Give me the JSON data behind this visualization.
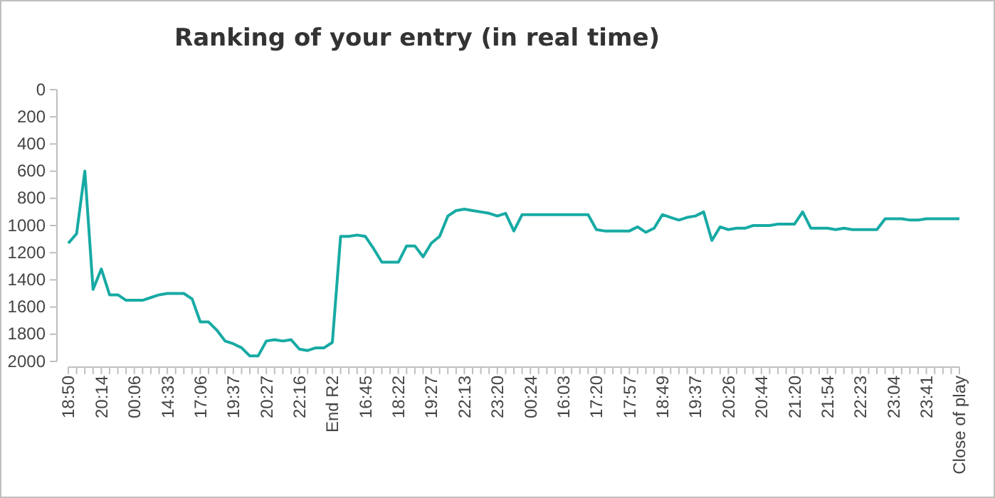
{
  "chart_data": {
    "type": "line",
    "title": "Ranking of your entry (in real time)",
    "categories": [
      "18:50",
      null,
      null,
      null,
      "20:14",
      null,
      null,
      null,
      "00:06",
      null,
      null,
      null,
      "14:33",
      null,
      null,
      null,
      "17:06",
      null,
      null,
      null,
      "19:37",
      null,
      null,
      null,
      "20:27",
      null,
      null,
      null,
      "22:16",
      null,
      null,
      null,
      "End R2",
      null,
      null,
      null,
      "16:45",
      null,
      null,
      null,
      "18:22",
      null,
      null,
      null,
      "19:27",
      null,
      null,
      null,
      "22:13",
      null,
      null,
      null,
      "23:20",
      null,
      null,
      null,
      "00:24",
      null,
      null,
      null,
      "16:03",
      null,
      null,
      null,
      "17:20",
      null,
      null,
      null,
      "17:57",
      null,
      null,
      null,
      "18:49",
      null,
      null,
      null,
      "19:37",
      null,
      null,
      null,
      "20:26",
      null,
      null,
      null,
      "20:44",
      null,
      null,
      null,
      "21:20",
      null,
      null,
      null,
      "21:54",
      null,
      null,
      null,
      "22:23",
      null,
      null,
      null,
      "23:04",
      null,
      null,
      null,
      "23:41",
      null,
      null,
      null,
      "Close of play"
    ],
    "series": [
      {
        "color": "#17aaa4",
        "values": [
          1130,
          1060,
          600,
          1470,
          1320,
          1510,
          1510,
          1550,
          1550,
          1550,
          1530,
          1510,
          1500,
          1500,
          1500,
          1540,
          1710,
          1710,
          1770,
          1850,
          1870,
          1900,
          1960,
          1960,
          1850,
          1840,
          1850,
          1840,
          1910,
          1920,
          1900,
          1900,
          1860,
          1080,
          1080,
          1070,
          1080,
          1170,
          1270,
          1270,
          1270,
          1150,
          1150,
          1230,
          1130,
          1080,
          930,
          890,
          880,
          890,
          900,
          910,
          930,
          910,
          1040,
          920,
          920,
          920,
          920,
          920,
          920,
          920,
          920,
          920,
          1030,
          1040,
          1040,
          1040,
          1040,
          1010,
          1050,
          1020,
          920,
          940,
          960,
          940,
          930,
          900,
          1110,
          1010,
          1030,
          1020,
          1020,
          1000,
          1000,
          1000,
          990,
          990,
          990,
          900,
          1020,
          1020,
          1020,
          1030,
          1020,
          1030,
          1030,
          1030,
          1030,
          950,
          950,
          950,
          960,
          960,
          950,
          950,
          950,
          950,
          950
        ]
      }
    ],
    "ylim": [
      2000,
      0
    ],
    "yticks": [
      0,
      200,
      400,
      600,
      800,
      1000,
      1200,
      1400,
      1600,
      1800,
      2000
    ],
    "grid": false,
    "marker": "none",
    "line_style": "solid"
  }
}
